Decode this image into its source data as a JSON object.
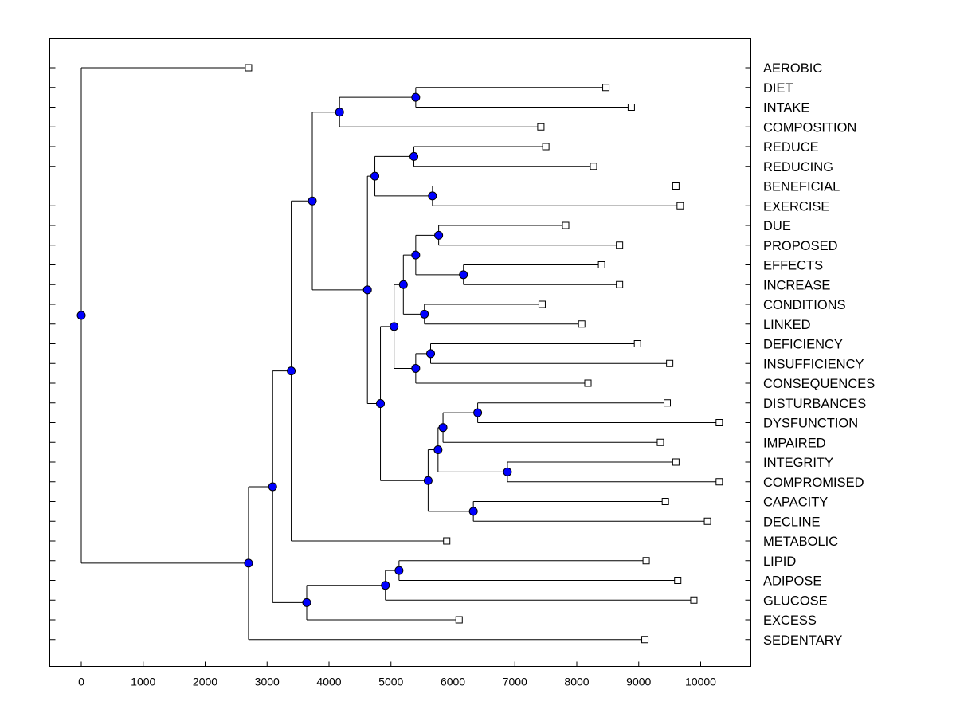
{
  "chart_data": {
    "type": "dendrogram",
    "title": "",
    "xlabel": "",
    "ylabel": "",
    "xlim": [
      -500,
      10800
    ],
    "x_ticks": [
      0,
      1000,
      2000,
      3000,
      4000,
      5000,
      6000,
      7000,
      8000,
      9000,
      10000
    ],
    "x_tick_labels": [
      "0",
      "1000",
      "2000",
      "3000",
      "4000",
      "5000",
      "6000",
      "7000",
      "8000",
      "9000",
      "10000"
    ],
    "node_color": "#0000ff",
    "leaf_marker_color": "#ffffff",
    "line_color": "#000000",
    "leaves": [
      {
        "name": "AEROBIC",
        "x": 2700
      },
      {
        "name": "DIET",
        "x": 8470
      },
      {
        "name": "INTAKE",
        "x": 8880
      },
      {
        "name": "COMPOSITION",
        "x": 7420
      },
      {
        "name": "REDUCE",
        "x": 7500
      },
      {
        "name": "REDUCING",
        "x": 8270
      },
      {
        "name": "BENEFICIAL",
        "x": 9600
      },
      {
        "name": "EXERCISE",
        "x": 9670
      },
      {
        "name": "DUE",
        "x": 7820
      },
      {
        "name": "PROPOSED",
        "x": 8690
      },
      {
        "name": "EFFECTS",
        "x": 8400
      },
      {
        "name": "INCREASE",
        "x": 8690
      },
      {
        "name": "CONDITIONS",
        "x": 7440
      },
      {
        "name": "LINKED",
        "x": 8080
      },
      {
        "name": "DEFICIENCY",
        "x": 8980
      },
      {
        "name": "INSUFFICIENCY",
        "x": 9500
      },
      {
        "name": "CONSEQUENCES",
        "x": 8180
      },
      {
        "name": "DISTURBANCES",
        "x": 9460
      },
      {
        "name": "DYSFUNCTION",
        "x": 10300
      },
      {
        "name": "IMPAIRED",
        "x": 9350
      },
      {
        "name": "INTEGRITY",
        "x": 9600
      },
      {
        "name": "COMPROMISED",
        "x": 10300
      },
      {
        "name": "CAPACITY",
        "x": 9430
      },
      {
        "name": "DECLINE",
        "x": 10110
      },
      {
        "name": "METABOLIC",
        "x": 5900
      },
      {
        "name": "LIPID",
        "x": 9120
      },
      {
        "name": "ADIPOSE",
        "x": 9630
      },
      {
        "name": "GLUCOSE",
        "x": 9890
      },
      {
        "name": "EXCESS",
        "x": 6100
      },
      {
        "name": "SEDENTARY",
        "x": 9100
      }
    ],
    "nodes": [
      {
        "id": "n1",
        "x": 5400,
        "children": [
          "L1",
          "L2"
        ]
      },
      {
        "id": "n2",
        "x": 4170,
        "children": [
          "n1",
          "L3"
        ]
      },
      {
        "id": "n3",
        "x": 5370,
        "children": [
          "L4",
          "L5"
        ]
      },
      {
        "id": "n4",
        "x": 5670,
        "children": [
          "L6",
          "L7"
        ]
      },
      {
        "id": "n5",
        "x": 4740,
        "children": [
          "n3",
          "n4"
        ]
      },
      {
        "id": "n6",
        "x": 5770,
        "children": [
          "L8",
          "L9"
        ]
      },
      {
        "id": "n7",
        "x": 6170,
        "children": [
          "L10",
          "L11"
        ]
      },
      {
        "id": "n8",
        "x": 5400,
        "children": [
          "n6",
          "n7"
        ]
      },
      {
        "id": "n9",
        "x": 5540,
        "children": [
          "L12",
          "L13"
        ]
      },
      {
        "id": "n10",
        "x": 5200,
        "children": [
          "n8",
          "n9"
        ]
      },
      {
        "id": "n11",
        "x": 5640,
        "children": [
          "L14",
          "L15"
        ]
      },
      {
        "id": "n12",
        "x": 5400,
        "children": [
          "n11",
          "L16"
        ]
      },
      {
        "id": "n13",
        "x": 5050,
        "children": [
          "n10",
          "n12"
        ]
      },
      {
        "id": "n14",
        "x": 6400,
        "children": [
          "L17",
          "L18"
        ]
      },
      {
        "id": "n15",
        "x": 5840,
        "children": [
          "n14",
          "L19"
        ]
      },
      {
        "id": "n16",
        "x": 6880,
        "children": [
          "L20",
          "L21"
        ]
      },
      {
        "id": "n17",
        "x": 5760,
        "children": [
          "n15",
          "n16"
        ]
      },
      {
        "id": "n18",
        "x": 6330,
        "children": [
          "L22",
          "L23"
        ]
      },
      {
        "id": "n19",
        "x": 5600,
        "children": [
          "n17",
          "n18"
        ]
      },
      {
        "id": "n20",
        "x": 4830,
        "children": [
          "n13",
          "n19"
        ]
      },
      {
        "id": "n21",
        "x": 4620,
        "children": [
          "n5",
          "n20"
        ]
      },
      {
        "id": "n22",
        "x": 3730,
        "children": [
          "n2",
          "n21"
        ]
      },
      {
        "id": "n23",
        "x": 3390,
        "children": [
          "n22",
          "L24"
        ]
      },
      {
        "id": "n24",
        "x": 5130,
        "children": [
          "L25",
          "L26"
        ]
      },
      {
        "id": "n25",
        "x": 4910,
        "children": [
          "n24",
          "L27"
        ]
      },
      {
        "id": "n26",
        "x": 3640,
        "children": [
          "n25",
          "L28"
        ]
      },
      {
        "id": "n27",
        "x": 3090,
        "children": [
          "n23",
          "n26"
        ]
      },
      {
        "id": "n28",
        "x": 2700,
        "children": [
          "n27",
          "L29"
        ]
      },
      {
        "id": "n29",
        "x": 0,
        "children": [
          "L0",
          "n28"
        ]
      }
    ]
  }
}
